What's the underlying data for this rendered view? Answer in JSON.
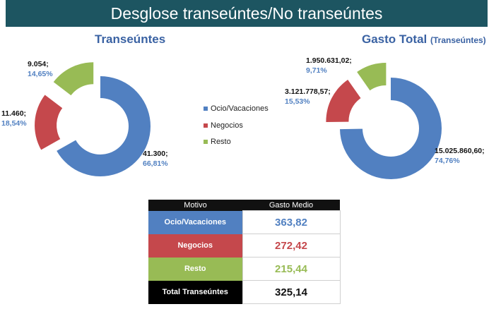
{
  "title": "Desglose transeúntes/No transeúntes",
  "colors": {
    "ocio": "#5180c1",
    "negocios": "#c5484c",
    "resto": "#98bb55",
    "header": "#1d5561",
    "title_blue": "#3a62a3"
  },
  "legend": [
    "Ocio/Vacaciones",
    "Negocios",
    "Resto"
  ],
  "chart_data": [
    {
      "type": "pie",
      "title": "Transeúntes",
      "categories": [
        "Ocio/Vacaciones",
        "Negocios",
        "Resto"
      ],
      "values": [
        41300,
        11460,
        9054
      ],
      "value_labels": [
        "41.300;",
        "11.460;",
        "9.054;"
      ],
      "percent_labels": [
        "66,81%",
        "18,54%",
        "14,65%"
      ]
    },
    {
      "type": "pie",
      "title": "Gasto Total",
      "subtitle": "(Transeúntes)",
      "categories": [
        "Ocio/Vacaciones",
        "Negocios",
        "Resto"
      ],
      "values": [
        15025860.6,
        3121778.57,
        1950631.02
      ],
      "value_labels": [
        "15.025.860,60;",
        "3.121.778,57;",
        "1.950.631,02;"
      ],
      "percent_labels": [
        "74,76%",
        "15,53%",
        "9,71%"
      ]
    },
    {
      "type": "table",
      "headers": [
        "Motivo",
        "Gasto Medio"
      ],
      "rows": [
        {
          "motivo": "Ocio/Vacaciones",
          "gasto": "363,82"
        },
        {
          "motivo": "Negocios",
          "gasto": "272,42"
        },
        {
          "motivo": "Resto",
          "gasto": "215,44"
        },
        {
          "motivo": "Total Transeúntes",
          "gasto": "325,14"
        }
      ]
    }
  ]
}
